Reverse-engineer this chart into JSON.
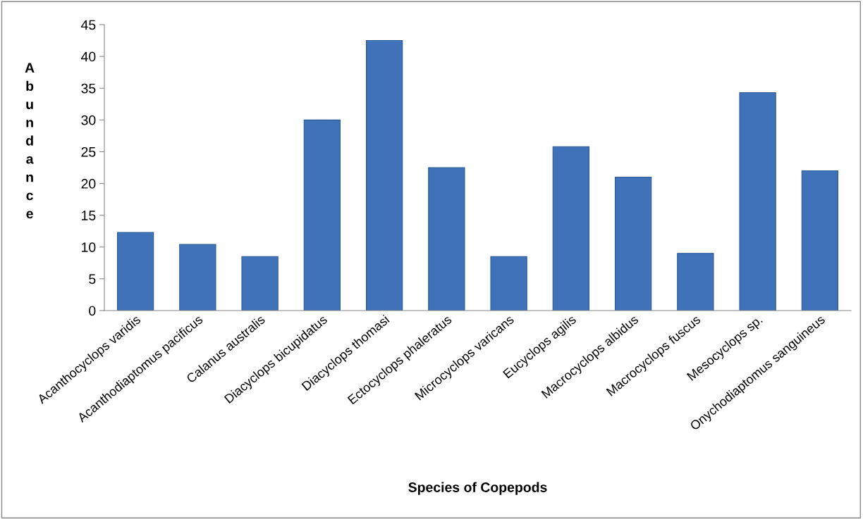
{
  "chart_data": {
    "type": "bar",
    "xlabel": "Species of Copepods",
    "ylabel": "Abundance",
    "categories": [
      "Acanthocyclops varidis",
      "Acanthodiaptomus pacificus",
      "Calanus australis",
      "Diacyclops bicupidatus",
      "Diacyclops thomasi",
      "Ectocyclops phaleratus",
      "Microcyclops varicans",
      "Eucyclops agilis",
      "Macrocyclops albidus",
      "Macrocyclops fuscus",
      "Mesocyclops sp.",
      "Onychodiaptomus sanguineus"
    ],
    "values": [
      12.3,
      10.4,
      8.5,
      30,
      42.5,
      22.5,
      8.5,
      25.8,
      21,
      9,
      34.3,
      22
    ],
    "color": "#3f72b8",
    "ylim": [
      0,
      45
    ],
    "yticks": [
      0,
      5,
      10,
      15,
      20,
      25,
      30,
      35,
      40,
      45
    ],
    "grid": false,
    "legend": false
  }
}
